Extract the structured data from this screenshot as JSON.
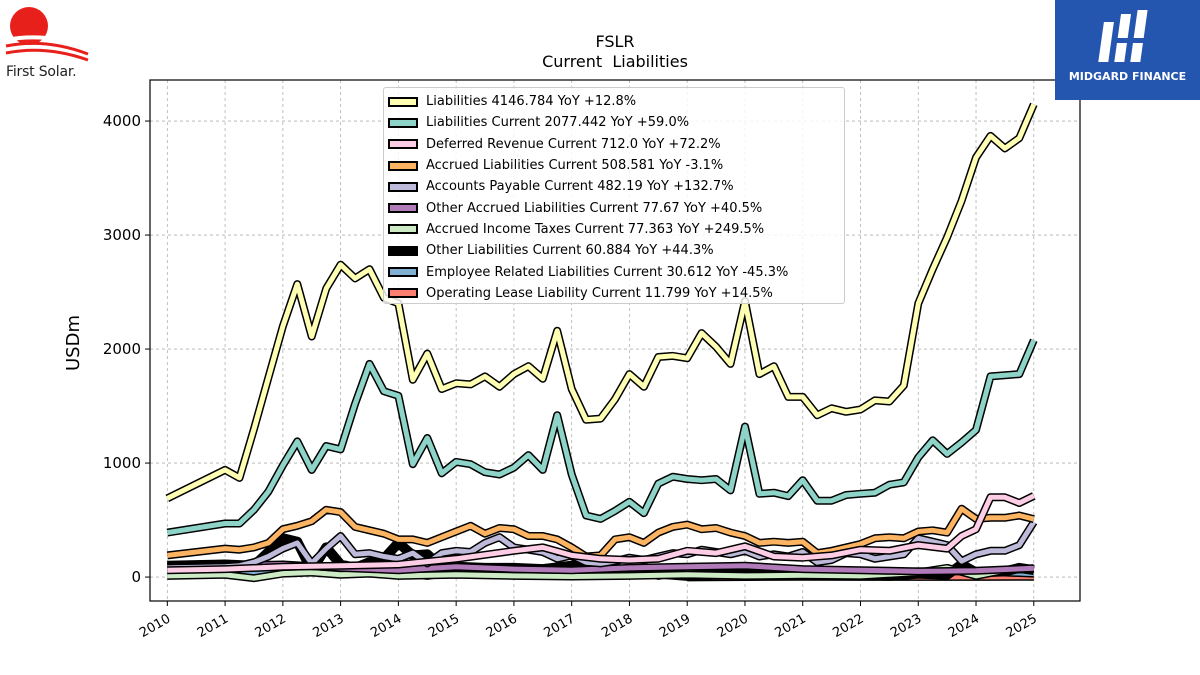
{
  "header": {
    "brand_left": "First Solar.",
    "brand_right": "MIDGARD FINANCE"
  },
  "colors": {
    "sun_red": "#e8201c",
    "midgard_blue": "#2456b0"
  },
  "chart_data": {
    "type": "line",
    "title": "FSLR",
    "subtitle": "Current  Liabilities",
    "ylabel": "USDm",
    "xlabel": "",
    "xlim": [
      2009.7,
      2025.8
    ],
    "ylim": [
      -210,
      4360
    ],
    "yticks": [
      0,
      1000,
      2000,
      3000,
      4000
    ],
    "xticks": [
      "2010",
      "2011",
      "2012",
      "2013",
      "2014",
      "2015",
      "2016",
      "2017",
      "2018",
      "2019",
      "2020",
      "2021",
      "2022",
      "2023",
      "2024",
      "2025"
    ],
    "grid": true,
    "legend_position": "top-center",
    "series": [
      {
        "name": "Liabilities",
        "color": "#ffffb3",
        "legend": "Liabilities  4146.784 YoY +12.8%",
        "width": 5,
        "x": [
          2010,
          2011,
          2011.25,
          2011.5,
          2011.75,
          2012,
          2012.25,
          2012.5,
          2012.75,
          2013,
          2013.25,
          2013.5,
          2013.75,
          2014,
          2014.25,
          2014.5,
          2014.75,
          2015,
          2015.25,
          2015.5,
          2015.75,
          2016,
          2016.25,
          2016.5,
          2016.75,
          2017,
          2017.25,
          2017.5,
          2017.75,
          2018,
          2018.25,
          2018.5,
          2018.75,
          2019,
          2019.25,
          2019.5,
          2019.75,
          2020,
          2020.25,
          2020.5,
          2020.75,
          2021,
          2021.25,
          2021.5,
          2021.75,
          2022,
          2022.25,
          2022.5,
          2022.75,
          2023,
          2023.25,
          2023.5,
          2023.75,
          2024,
          2024.25,
          2024.5,
          2024.75,
          2025
        ],
        "y": [
          690,
          940,
          870,
          1300,
          1750,
          2200,
          2570,
          2110,
          2530,
          2740,
          2620,
          2700,
          2450,
          2400,
          1730,
          1960,
          1650,
          1700,
          1690,
          1760,
          1670,
          1780,
          1850,
          1740,
          2160,
          1650,
          1380,
          1390,
          1560,
          1780,
          1670,
          1930,
          1940,
          1920,
          2140,
          2020,
          1870,
          2420,
          1780,
          1850,
          1580,
          1580,
          1420,
          1480,
          1450,
          1470,
          1550,
          1540,
          1680,
          2400,
          2700,
          2980,
          3300,
          3680,
          3870,
          3760,
          3850,
          4146.784
        ]
      },
      {
        "name": "Liabilities Current",
        "color": "#8dd3c7",
        "legend": "Liabilities Current  2077.442 YoY +59.0%",
        "width": 5,
        "x": [
          2010,
          2011,
          2011.25,
          2011.5,
          2011.75,
          2012,
          2012.25,
          2012.5,
          2012.75,
          2013,
          2013.25,
          2013.5,
          2013.75,
          2014,
          2014.25,
          2014.5,
          2014.75,
          2015,
          2015.25,
          2015.5,
          2015.75,
          2016,
          2016.25,
          2016.5,
          2016.75,
          2017,
          2017.25,
          2017.5,
          2017.75,
          2018,
          2018.25,
          2018.5,
          2018.75,
          2019,
          2019.25,
          2019.5,
          2019.75,
          2020,
          2020.25,
          2020.5,
          2020.75,
          2021,
          2021.25,
          2021.5,
          2021.75,
          2022,
          2022.25,
          2022.5,
          2022.75,
          2023,
          2023.25,
          2023.5,
          2023.75,
          2024,
          2024.25,
          2024.5,
          2024.75,
          2025
        ],
        "y": [
          390,
          470,
          470,
          590,
          750,
          980,
          1190,
          940,
          1150,
          1120,
          1520,
          1870,
          1630,
          1590,
          990,
          1220,
          910,
          1010,
          990,
          920,
          900,
          960,
          1070,
          940,
          1420,
          900,
          540,
          510,
          580,
          660,
          560,
          820,
          880,
          860,
          850,
          860,
          760,
          1320,
          730,
          740,
          710,
          850,
          670,
          670,
          720,
          730,
          740,
          810,
          830,
          1050,
          1200,
          1080,
          1180,
          1290,
          1760,
          1770,
          1780,
          2077.442
        ]
      },
      {
        "name": "Deferred Revenue Current",
        "color": "#fccde5",
        "legend": "Deferred Revenue Current  712.0 YoY +72.2%",
        "width": 5,
        "x": [
          2010,
          2011,
          2012,
          2013,
          2014,
          2015,
          2016,
          2016.5,
          2017,
          2017.5,
          2018,
          2018.5,
          2019,
          2019.5,
          2020,
          2020.5,
          2021,
          2021.5,
          2022,
          2022.5,
          2023,
          2023.5,
          2023.75,
          2024,
          2024.25,
          2024.5,
          2024.75,
          2025
        ],
        "y": [
          60,
          70,
          90,
          100,
          110,
          160,
          230,
          260,
          190,
          160,
          150,
          160,
          230,
          210,
          270,
          180,
          170,
          190,
          240,
          230,
          280,
          250,
          360,
          420,
          700,
          700,
          650,
          712.0
        ]
      },
      {
        "name": "Accrued Liabilities Current",
        "color": "#fdb462",
        "legend": "Accrued Liabilities Current  508.581 YoY -3.1%",
        "width": 5,
        "x": [
          2010,
          2011,
          2011.25,
          2011.5,
          2011.75,
          2012,
          2012.25,
          2012.5,
          2012.75,
          2013,
          2013.25,
          2013.5,
          2013.75,
          2014,
          2014.25,
          2014.5,
          2014.75,
          2015,
          2015.25,
          2015.5,
          2015.75,
          2016,
          2016.25,
          2016.5,
          2016.75,
          2017,
          2017.25,
          2017.5,
          2017.75,
          2018,
          2018.25,
          2018.5,
          2018.75,
          2019,
          2019.25,
          2019.5,
          2019.75,
          2020,
          2020.25,
          2020.5,
          2020.75,
          2021,
          2021.25,
          2021.5,
          2021.75,
          2022,
          2022.25,
          2022.5,
          2022.75,
          2023,
          2023.25,
          2023.5,
          2023.75,
          2024,
          2024.25,
          2024.5,
          2024.75,
          2025
        ],
        "y": [
          190,
          250,
          240,
          260,
          300,
          420,
          450,
          490,
          590,
          570,
          440,
          410,
          380,
          330,
          330,
          300,
          350,
          400,
          450,
          380,
          430,
          420,
          360,
          360,
          330,
          260,
          180,
          190,
          330,
          350,
          300,
          390,
          440,
          460,
          420,
          430,
          390,
          360,
          300,
          310,
          300,
          310,
          210,
          230,
          260,
          290,
          340,
          350,
          340,
          400,
          410,
          390,
          600,
          510,
          520,
          520,
          540,
          508.581
        ]
      },
      {
        "name": "Accounts Payable Current",
        "color": "#bebada",
        "legend": "Accounts Payable Current  482.19 YoY +132.7%",
        "width": 5,
        "x": [
          2010,
          2011,
          2011.25,
          2011.5,
          2011.75,
          2012,
          2012.25,
          2012.5,
          2012.75,
          2013,
          2013.25,
          2013.5,
          2013.75,
          2014,
          2014.25,
          2014.5,
          2014.75,
          2015,
          2015.25,
          2015.5,
          2015.75,
          2016,
          2016.25,
          2016.5,
          2016.75,
          2017,
          2017.25,
          2017.5,
          2017.75,
          2018,
          2018.25,
          2018.5,
          2018.75,
          2019,
          2019.25,
          2019.5,
          2019.75,
          2020,
          2020.25,
          2020.5,
          2020.75,
          2021,
          2021.25,
          2021.5,
          2021.75,
          2022,
          2022.25,
          2022.5,
          2022.75,
          2023,
          2023.25,
          2023.5,
          2023.75,
          2024,
          2024.25,
          2024.5,
          2024.75,
          2025
        ],
        "y": [
          80,
          90,
          100,
          130,
          180,
          250,
          300,
          120,
          250,
          360,
          200,
          210,
          180,
          160,
          210,
          120,
          210,
          230,
          220,
          300,
          350,
          260,
          240,
          220,
          160,
          190,
          130,
          120,
          140,
          170,
          150,
          180,
          210,
          200,
          240,
          220,
          200,
          230,
          180,
          200,
          180,
          220,
          130,
          150,
          210,
          200,
          160,
          180,
          200,
          340,
          310,
          280,
          140,
          200,
          230,
          230,
          280,
          482.19
        ]
      },
      {
        "name": "Other Accrued Liabilities Current",
        "color": "#b17ab9",
        "legend": "Other Accrued Liabilities Current  77.67 YoY +40.5%",
        "width": 5,
        "x": [
          2010,
          2011,
          2012,
          2013,
          2014,
          2015,
          2016,
          2017,
          2018,
          2019,
          2020,
          2021,
          2022,
          2023,
          2024,
          2025
        ],
        "y": [
          90,
          100,
          110,
          80,
          60,
          90,
          70,
          60,
          80,
          90,
          100,
          70,
          60,
          50,
          55,
          77.67
        ]
      },
      {
        "name": "Accrued Income Taxes Current",
        "color": "#ccebc5",
        "legend": "Accrued Income Taxes Current  77.363 YoY +249.5%",
        "width": 5,
        "x": [
          2010,
          2011,
          2011.5,
          2012,
          2012.5,
          2013,
          2013.5,
          2014,
          2015,
          2016,
          2017,
          2018,
          2019,
          2020,
          2021,
          2022,
          2023,
          2023.5,
          2024,
          2024.5,
          2025
        ],
        "y": [
          10,
          20,
          -10,
          30,
          40,
          20,
          30,
          10,
          20,
          10,
          5,
          10,
          20,
          10,
          15,
          10,
          40,
          80,
          10,
          60,
          77.363
        ]
      },
      {
        "name": "Other Liabilities Current",
        "color": "#000000",
        "legend": "Other Liabilities Current  60.884 YoY +44.3%",
        "width": 7,
        "x": [
          2010,
          2011,
          2011.5,
          2012,
          2012.25,
          2012.5,
          2012.75,
          2013,
          2013.25,
          2013.5,
          2013.75,
          2014,
          2014.25,
          2014.5,
          2014.75,
          2015,
          2015.5,
          2016,
          2016.5,
          2017,
          2017.25,
          2017.5,
          2017.75,
          2018,
          2018.5,
          2018.75,
          2019,
          2019.5,
          2020,
          2020.5,
          2021,
          2021.5,
          2022,
          2022.5,
          2023,
          2023.5,
          2023.75,
          2024,
          2024.5,
          2024.75,
          2025
        ],
        "y": [
          100,
          110,
          100,
          340,
          310,
          60,
          260,
          110,
          80,
          130,
          160,
          300,
          190,
          200,
          80,
          90,
          80,
          80,
          70,
          100,
          150,
          140,
          80,
          40,
          30,
          20,
          10,
          20,
          30,
          20,
          20,
          15,
          20,
          10,
          30,
          20,
          110,
          40,
          50,
          80,
          60.884
        ]
      },
      {
        "name": "Employee Related Liabilities Current",
        "color": "#80b1d3",
        "legend": "Employee Related Liabilities Current  30.612 YoY -45.3%",
        "width": 5,
        "x": [
          2010,
          2011,
          2011.5,
          2012,
          2012.5,
          2013,
          2013.5,
          2014,
          2014.5,
          2015,
          2015.5,
          2016,
          2016.5,
          2017,
          2017.5,
          2018,
          2018.5,
          2019,
          2019.5,
          2020,
          2021,
          2022,
          2023,
          2024,
          2025
        ],
        "y": [
          60,
          70,
          30,
          40,
          60,
          100,
          30,
          40,
          10,
          50,
          30,
          50,
          30,
          60,
          20,
          70,
          10,
          60,
          40,
          50,
          40,
          40,
          50,
          50,
          30.612
        ]
      },
      {
        "name": "Operating Lease Liability Current",
        "color": "#fb8072",
        "legend": "Operating Lease Liability Current  11.799 YoY +14.5%",
        "width": 7,
        "x": [
          2019,
          2020,
          2021,
          2022,
          2023,
          2024,
          2025
        ],
        "y": [
          6,
          9,
          12,
          10,
          10,
          10,
          11.799
        ]
      }
    ]
  }
}
